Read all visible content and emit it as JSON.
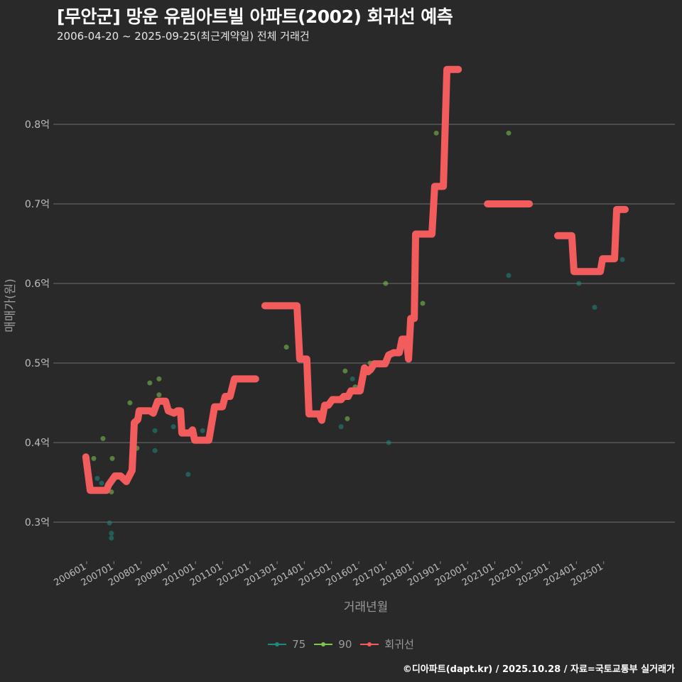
{
  "header": {
    "title": "[무안군] 망운 유림아트빌 아파트(2002) 회귀선 예측",
    "subtitle": "2006-04-20 ~ 2025-09-25(최근계약일) 전체 거래건"
  },
  "footer": "©디아파트(dapt.kr) / 2025.10.28 / 자료=국토교통부 실거래가",
  "chart_data": {
    "type": "scatter",
    "xlabel": "거래년월",
    "ylabel": "매매가(원)",
    "xlim": [
      2005.6,
      2026.3
    ],
    "ylim": [
      0.255,
      0.91
    ],
    "grid": true,
    "legend_position": "bottom",
    "x_ticks": [
      {
        "v": 2006,
        "label": "200601"
      },
      {
        "v": 2007,
        "label": "200701"
      },
      {
        "v": 2008,
        "label": "200801"
      },
      {
        "v": 2009,
        "label": "200901"
      },
      {
        "v": 2010,
        "label": "201001"
      },
      {
        "v": 2011,
        "label": "201101"
      },
      {
        "v": 2012,
        "label": "201201"
      },
      {
        "v": 2013,
        "label": "201301"
      },
      {
        "v": 2014,
        "label": "201401"
      },
      {
        "v": 2015,
        "label": "201501"
      },
      {
        "v": 2016,
        "label": "201601"
      },
      {
        "v": 2017,
        "label": "201701"
      },
      {
        "v": 2018,
        "label": "201801"
      },
      {
        "v": 2019,
        "label": "201901"
      },
      {
        "v": 2020,
        "label": "202001"
      },
      {
        "v": 2021,
        "label": "202101"
      },
      {
        "v": 2022,
        "label": "202201"
      },
      {
        "v": 2023,
        "label": "202301"
      },
      {
        "v": 2024,
        "label": "202401"
      },
      {
        "v": 2025,
        "label": "202501"
      }
    ],
    "y_ticks": [
      {
        "v": 0.3,
        "label": "0.3억"
      },
      {
        "v": 0.4,
        "label": "0.4억"
      },
      {
        "v": 0.5,
        "label": "0.5억"
      },
      {
        "v": 0.6,
        "label": "0.6억"
      },
      {
        "v": 0.7,
        "label": "0.7억"
      },
      {
        "v": 0.8,
        "label": "0.8억"
      }
    ],
    "series": [
      {
        "name": "75",
        "color": "#1f8a80",
        "points": [
          [
            2006.39,
            0.355
          ],
          [
            2006.55,
            0.349
          ],
          [
            2006.84,
            0.299
          ],
          [
            2006.91,
            0.286
          ],
          [
            2006.91,
            0.28
          ],
          [
            2008.51,
            0.415
          ],
          [
            2008.51,
            0.39
          ],
          [
            2009.19,
            0.42
          ],
          [
            2009.73,
            0.36
          ],
          [
            2010.26,
            0.415
          ],
          [
            2015.35,
            0.42
          ],
          [
            2015.77,
            0.48
          ],
          [
            2017.1,
            0.4
          ],
          [
            2021.51,
            0.61
          ],
          [
            2024.09,
            0.6
          ],
          [
            2024.67,
            0.57
          ],
          [
            2025.69,
            0.63
          ]
        ]
      },
      {
        "name": "90",
        "color": "#7ec850",
        "points": [
          [
            2006.26,
            0.38
          ],
          [
            2006.6,
            0.405
          ],
          [
            2006.94,
            0.38
          ],
          [
            2006.91,
            0.338
          ],
          [
            2007.59,
            0.45
          ],
          [
            2007.85,
            0.393
          ],
          [
            2008.32,
            0.475
          ],
          [
            2008.66,
            0.48
          ],
          [
            2008.66,
            0.46
          ],
          [
            2013.34,
            0.52
          ],
          [
            2015.5,
            0.49
          ],
          [
            2015.58,
            0.43
          ],
          [
            2015.87,
            0.47
          ],
          [
            2016.42,
            0.5
          ],
          [
            2016.99,
            0.6
          ],
          [
            2018.35,
            0.575
          ],
          [
            2018.85,
            0.789
          ],
          [
            2021.51,
            0.789
          ]
        ]
      },
      {
        "name": "회귀선",
        "color": "#f25c5c",
        "segments": [
          [
            [
              2005.97,
              0.382
            ],
            [
              2006.13,
              0.34
            ],
            [
              2006.73,
              0.34
            ],
            [
              2006.81,
              0.347
            ],
            [
              2007.04,
              0.358
            ],
            [
              2007.25,
              0.358
            ],
            [
              2007.46,
              0.351
            ],
            [
              2007.67,
              0.365
            ],
            [
              2007.75,
              0.425
            ],
            [
              2007.88,
              0.429
            ],
            [
              2007.93,
              0.44
            ],
            [
              2008.32,
              0.44
            ],
            [
              2008.45,
              0.437
            ],
            [
              2008.61,
              0.452
            ],
            [
              2008.9,
              0.452
            ],
            [
              2009.0,
              0.44
            ],
            [
              2009.21,
              0.437
            ],
            [
              2009.34,
              0.44
            ],
            [
              2009.45,
              0.44
            ],
            [
              2009.5,
              0.412
            ],
            [
              2009.79,
              0.412
            ],
            [
              2009.89,
              0.416
            ],
            [
              2009.97,
              0.403
            ],
            [
              2010.49,
              0.403
            ],
            [
              2010.7,
              0.445
            ],
            [
              2010.99,
              0.445
            ],
            [
              2011.09,
              0.458
            ],
            [
              2011.27,
              0.458
            ],
            [
              2011.43,
              0.48
            ],
            [
              2012.21,
              0.48
            ]
          ],
          [
            [
              2012.55,
              0.572
            ],
            [
              2013.73,
              0.572
            ],
            [
              2013.83,
              0.505
            ],
            [
              2014.09,
              0.505
            ],
            [
              2014.17,
              0.436
            ],
            [
              2014.54,
              0.436
            ],
            [
              2014.64,
              0.428
            ],
            [
              2014.75,
              0.447
            ],
            [
              2014.88,
              0.447
            ],
            [
              2015.03,
              0.454
            ],
            [
              2015.35,
              0.454
            ],
            [
              2015.45,
              0.458
            ],
            [
              2015.61,
              0.458
            ],
            [
              2015.71,
              0.465
            ],
            [
              2016.05,
              0.465
            ],
            [
              2016.21,
              0.494
            ],
            [
              2016.34,
              0.489
            ],
            [
              2016.44,
              0.492
            ],
            [
              2016.57,
              0.499
            ],
            [
              2016.97,
              0.499
            ],
            [
              2017.1,
              0.51
            ],
            [
              2017.28,
              0.513
            ],
            [
              2017.49,
              0.513
            ],
            [
              2017.59,
              0.53
            ],
            [
              2017.75,
              0.53
            ],
            [
              2017.83,
              0.505
            ],
            [
              2017.91,
              0.556
            ],
            [
              2018.04,
              0.556
            ],
            [
              2018.09,
              0.662
            ],
            [
              2018.69,
              0.662
            ],
            [
              2018.79,
              0.722
            ],
            [
              2019.11,
              0.722
            ],
            [
              2019.24,
              0.869
            ],
            [
              2019.66,
              0.869
            ]
          ],
          [
            [
              2020.73,
              0.7
            ],
            [
              2022.27,
              0.7
            ]
          ],
          [
            [
              2023.31,
              0.66
            ],
            [
              2023.83,
              0.66
            ],
            [
              2023.91,
              0.615
            ],
            [
              2024.88,
              0.615
            ],
            [
              2024.96,
              0.631
            ],
            [
              2025.4,
              0.631
            ],
            [
              2025.48,
              0.693
            ],
            [
              2025.79,
              0.693
            ]
          ]
        ]
      }
    ]
  }
}
